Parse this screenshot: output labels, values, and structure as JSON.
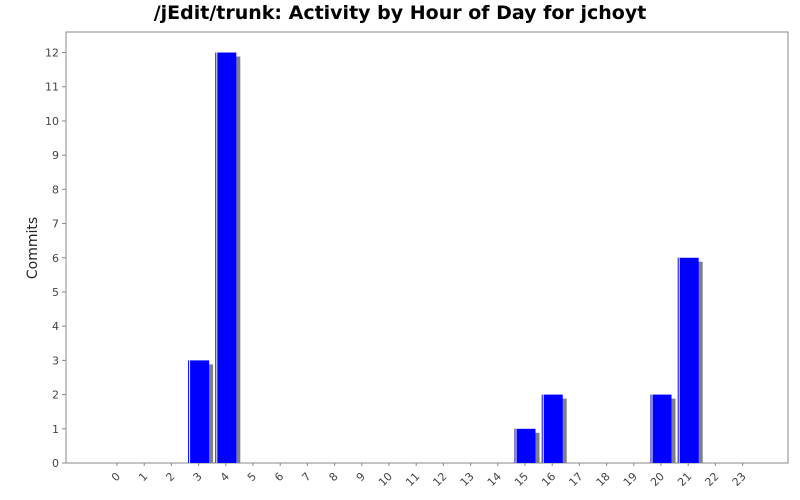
{
  "chart_data": {
    "type": "bar",
    "title": "/jEdit/trunk: Activity by Hour of Day for jchoyt",
    "xlabel": "",
    "ylabel": "Commits",
    "categories": [
      "0",
      "1",
      "2",
      "3",
      "4",
      "5",
      "6",
      "7",
      "8",
      "9",
      "10",
      "11",
      "12",
      "13",
      "14",
      "15",
      "16",
      "17",
      "18",
      "19",
      "20",
      "21",
      "22",
      "23"
    ],
    "values": [
      0,
      0,
      0,
      3,
      12,
      0,
      0,
      0,
      0,
      0,
      0,
      0,
      0,
      0,
      0,
      1,
      2,
      0,
      0,
      0,
      2,
      6,
      0,
      0
    ],
    "ylim": [
      0,
      12.6
    ],
    "yticks": [
      "0",
      "1",
      "2",
      "3",
      "4",
      "5",
      "6",
      "7",
      "8",
      "9",
      "10",
      "11",
      "12"
    ],
    "grid": false,
    "legend": "none",
    "colors": {
      "bar": "#0000ff",
      "bar_highlight": "#ffffff",
      "bar_shadow": "#808080",
      "axis": "#888888"
    }
  }
}
